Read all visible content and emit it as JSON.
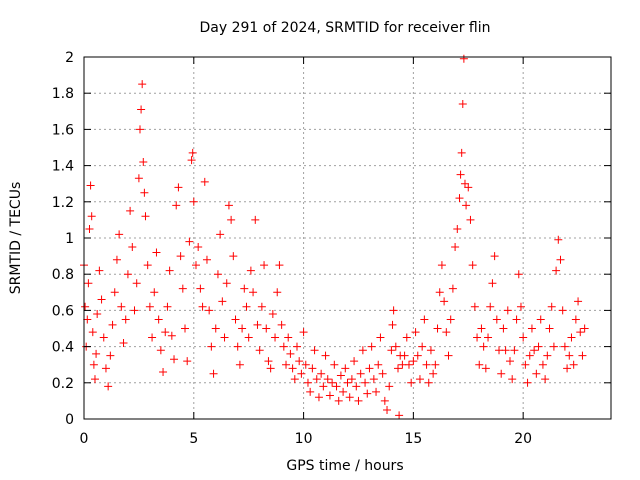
{
  "chart_data": {
    "type": "scatter",
    "title": "Day 291 of 2024, SRMTID for receiver flin",
    "xlabel": "GPS time / hours",
    "ylabel": "SRMTID / TECUs",
    "xlim": [
      0,
      24
    ],
    "ylim": [
      0,
      2
    ],
    "xticks": [
      0,
      5,
      10,
      15,
      20
    ],
    "xtick_labels": [
      "0",
      "5",
      "10",
      "15",
      "20"
    ],
    "yticks": [
      0,
      0.2,
      0.4,
      0.6,
      0.8,
      1,
      1.2,
      1.4,
      1.6,
      1.8,
      2
    ],
    "ytick_labels": [
      "0",
      "0.2",
      "0.4",
      "0.6",
      "0.8",
      "1",
      "1.2",
      "1.4",
      "1.6",
      "1.8",
      "2"
    ],
    "grid": true,
    "marker": "+",
    "marker_color": "#ff0000",
    "series": [
      {
        "name": "SRMTID",
        "points": [
          [
            0.0,
            0.85
          ],
          [
            0.05,
            0.62
          ],
          [
            0.1,
            0.4
          ],
          [
            0.15,
            0.55
          ],
          [
            0.2,
            0.75
          ],
          [
            0.25,
            1.05
          ],
          [
            0.3,
            1.29
          ],
          [
            0.35,
            1.12
          ],
          [
            0.4,
            0.48
          ],
          [
            0.45,
            0.3
          ],
          [
            0.5,
            0.22
          ],
          [
            0.55,
            0.36
          ],
          [
            0.6,
            0.58
          ],
          [
            0.7,
            0.82
          ],
          [
            0.8,
            0.66
          ],
          [
            0.9,
            0.45
          ],
          [
            1.0,
            0.28
          ],
          [
            1.1,
            0.18
          ],
          [
            1.2,
            0.35
          ],
          [
            1.3,
            0.52
          ],
          [
            1.4,
            0.7
          ],
          [
            1.5,
            0.88
          ],
          [
            1.6,
            1.02
          ],
          [
            1.7,
            0.62
          ],
          [
            1.8,
            0.42
          ],
          [
            1.9,
            0.55
          ],
          [
            2.0,
            0.8
          ],
          [
            2.1,
            1.15
          ],
          [
            2.2,
            0.95
          ],
          [
            2.3,
            0.6
          ],
          [
            2.4,
            0.75
          ],
          [
            2.5,
            1.33
          ],
          [
            2.55,
            1.6
          ],
          [
            2.6,
            1.71
          ],
          [
            2.65,
            1.85
          ],
          [
            2.7,
            1.42
          ],
          [
            2.75,
            1.25
          ],
          [
            2.8,
            1.12
          ],
          [
            2.9,
            0.85
          ],
          [
            3.0,
            0.62
          ],
          [
            3.1,
            0.45
          ],
          [
            3.2,
            0.7
          ],
          [
            3.3,
            0.92
          ],
          [
            3.4,
            0.55
          ],
          [
            3.5,
            0.38
          ],
          [
            3.6,
            0.26
          ],
          [
            3.7,
            0.48
          ],
          [
            3.8,
            0.62
          ],
          [
            3.9,
            0.82
          ],
          [
            4.0,
            0.46
          ],
          [
            4.1,
            0.33
          ],
          [
            4.2,
            1.18
          ],
          [
            4.3,
            1.28
          ],
          [
            4.4,
            0.9
          ],
          [
            4.5,
            0.72
          ],
          [
            4.6,
            0.5
          ],
          [
            4.7,
            0.32
          ],
          [
            4.8,
            0.98
          ],
          [
            4.9,
            1.43
          ],
          [
            4.95,
            1.47
          ],
          [
            5.0,
            1.2
          ],
          [
            5.1,
            0.85
          ],
          [
            5.2,
            0.95
          ],
          [
            5.3,
            0.72
          ],
          [
            5.4,
            0.62
          ],
          [
            5.5,
            1.31
          ],
          [
            5.6,
            0.88
          ],
          [
            5.7,
            0.6
          ],
          [
            5.8,
            0.4
          ],
          [
            5.9,
            0.25
          ],
          [
            6.0,
            0.5
          ],
          [
            6.1,
            0.8
          ],
          [
            6.2,
            1.02
          ],
          [
            6.3,
            0.65
          ],
          [
            6.4,
            0.45
          ],
          [
            6.5,
            0.75
          ],
          [
            6.6,
            1.18
          ],
          [
            6.7,
            1.1
          ],
          [
            6.8,
            0.9
          ],
          [
            6.9,
            0.55
          ],
          [
            7.0,
            0.4
          ],
          [
            7.1,
            0.3
          ],
          [
            7.2,
            0.5
          ],
          [
            7.3,
            0.72
          ],
          [
            7.4,
            0.62
          ],
          [
            7.5,
            0.45
          ],
          [
            7.6,
            0.82
          ],
          [
            7.7,
            0.7
          ],
          [
            7.8,
            1.1
          ],
          [
            7.9,
            0.52
          ],
          [
            8.0,
            0.38
          ],
          [
            8.1,
            0.62
          ],
          [
            8.2,
            0.85
          ],
          [
            8.3,
            0.5
          ],
          [
            8.4,
            0.32
          ],
          [
            8.5,
            0.28
          ],
          [
            8.6,
            0.58
          ],
          [
            8.7,
            0.45
          ],
          [
            8.8,
            0.7
          ],
          [
            8.9,
            0.85
          ],
          [
            9.0,
            0.52
          ],
          [
            9.1,
            0.4
          ],
          [
            9.2,
            0.3
          ],
          [
            9.3,
            0.45
          ],
          [
            9.4,
            0.36
          ],
          [
            9.5,
            0.28
          ],
          [
            9.6,
            0.22
          ],
          [
            9.7,
            0.4
          ],
          [
            9.8,
            0.32
          ],
          [
            9.9,
            0.25
          ],
          [
            10.0,
            0.48
          ],
          [
            10.1,
            0.3
          ],
          [
            10.2,
            0.2
          ],
          [
            10.3,
            0.15
          ],
          [
            10.4,
            0.28
          ],
          [
            10.5,
            0.38
          ],
          [
            10.6,
            0.22
          ],
          [
            10.7,
            0.12
          ],
          [
            10.8,
            0.25
          ],
          [
            10.9,
            0.18
          ],
          [
            11.0,
            0.35
          ],
          [
            11.1,
            0.22
          ],
          [
            11.2,
            0.13
          ],
          [
            11.3,
            0.2
          ],
          [
            11.4,
            0.3
          ],
          [
            11.5,
            0.18
          ],
          [
            11.6,
            0.1
          ],
          [
            11.7,
            0.24
          ],
          [
            11.8,
            0.15
          ],
          [
            11.9,
            0.28
          ],
          [
            12.0,
            0.2
          ],
          [
            12.1,
            0.12
          ],
          [
            12.2,
            0.22
          ],
          [
            12.3,
            0.32
          ],
          [
            12.4,
            0.18
          ],
          [
            12.5,
            0.1
          ],
          [
            12.6,
            0.25
          ],
          [
            12.7,
            0.38
          ],
          [
            12.8,
            0.2
          ],
          [
            12.9,
            0.14
          ],
          [
            13.0,
            0.28
          ],
          [
            13.1,
            0.4
          ],
          [
            13.2,
            0.22
          ],
          [
            13.3,
            0.15
          ],
          [
            13.4,
            0.3
          ],
          [
            13.5,
            0.45
          ],
          [
            13.6,
            0.25
          ],
          [
            13.7,
            0.1
          ],
          [
            13.8,
            0.05
          ],
          [
            13.9,
            0.18
          ],
          [
            14.0,
            0.38
          ],
          [
            14.05,
            0.52
          ],
          [
            14.1,
            0.6
          ],
          [
            14.2,
            0.4
          ],
          [
            14.3,
            0.28
          ],
          [
            14.35,
            0.02
          ],
          [
            14.4,
            0.35
          ],
          [
            14.5,
            0.3
          ],
          [
            14.6,
            0.35
          ],
          [
            14.7,
            0.45
          ],
          [
            14.8,
            0.3
          ],
          [
            14.9,
            0.2
          ],
          [
            15.0,
            0.32
          ],
          [
            15.1,
            0.48
          ],
          [
            15.2,
            0.35
          ],
          [
            15.3,
            0.22
          ],
          [
            15.4,
            0.4
          ],
          [
            15.5,
            0.55
          ],
          [
            15.6,
            0.3
          ],
          [
            15.7,
            0.2
          ],
          [
            15.8,
            0.38
          ],
          [
            15.9,
            0.25
          ],
          [
            16.0,
            0.3
          ],
          [
            16.1,
            0.5
          ],
          [
            16.2,
            0.7
          ],
          [
            16.3,
            0.85
          ],
          [
            16.4,
            0.65
          ],
          [
            16.5,
            0.48
          ],
          [
            16.6,
            0.35
          ],
          [
            16.7,
            0.55
          ],
          [
            16.8,
            0.72
          ],
          [
            16.9,
            0.95
          ],
          [
            17.0,
            1.05
          ],
          [
            17.1,
            1.22
          ],
          [
            17.15,
            1.35
          ],
          [
            17.2,
            1.47
          ],
          [
            17.25,
            1.74
          ],
          [
            17.3,
            1.99
          ],
          [
            17.35,
            1.3
          ],
          [
            17.4,
            1.18
          ],
          [
            17.5,
            1.28
          ],
          [
            17.6,
            1.1
          ],
          [
            17.7,
            0.85
          ],
          [
            17.8,
            0.62
          ],
          [
            17.9,
            0.45
          ],
          [
            18.0,
            0.3
          ],
          [
            18.1,
            0.5
          ],
          [
            18.2,
            0.4
          ],
          [
            18.3,
            0.28
          ],
          [
            18.4,
            0.45
          ],
          [
            18.5,
            0.62
          ],
          [
            18.6,
            0.75
          ],
          [
            18.7,
            0.9
          ],
          [
            18.8,
            0.55
          ],
          [
            18.9,
            0.38
          ],
          [
            19.0,
            0.25
          ],
          [
            19.1,
            0.5
          ],
          [
            19.2,
            0.38
          ],
          [
            19.3,
            0.6
          ],
          [
            19.4,
            0.32
          ],
          [
            19.5,
            0.22
          ],
          [
            19.6,
            0.38
          ],
          [
            19.7,
            0.55
          ],
          [
            19.8,
            0.8
          ],
          [
            19.9,
            0.62
          ],
          [
            20.0,
            0.45
          ],
          [
            20.1,
            0.3
          ],
          [
            20.2,
            0.2
          ],
          [
            20.3,
            0.35
          ],
          [
            20.4,
            0.5
          ],
          [
            20.5,
            0.38
          ],
          [
            20.6,
            0.25
          ],
          [
            20.7,
            0.4
          ],
          [
            20.8,
            0.55
          ],
          [
            20.9,
            0.3
          ],
          [
            21.0,
            0.22
          ],
          [
            21.1,
            0.35
          ],
          [
            21.2,
            0.5
          ],
          [
            21.3,
            0.62
          ],
          [
            21.4,
            0.4
          ],
          [
            21.5,
            0.82
          ],
          [
            21.6,
            0.99
          ],
          [
            21.7,
            0.88
          ],
          [
            21.8,
            0.6
          ],
          [
            21.9,
            0.4
          ],
          [
            22.0,
            0.28
          ],
          [
            22.1,
            0.35
          ],
          [
            22.2,
            0.45
          ],
          [
            22.3,
            0.3
          ],
          [
            22.4,
            0.55
          ],
          [
            22.5,
            0.65
          ],
          [
            22.6,
            0.48
          ],
          [
            22.7,
            0.35
          ],
          [
            22.8,
            0.5
          ]
        ]
      }
    ]
  }
}
